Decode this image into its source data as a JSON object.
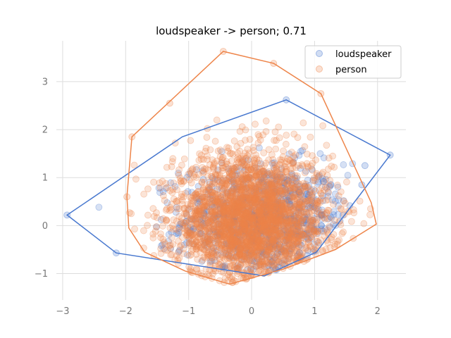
{
  "chart_data": {
    "type": "scatter",
    "title": "loudspeaker -> person; 0.71",
    "xlabel": "",
    "ylabel": "",
    "xlim": [
      -3.1,
      2.45
    ],
    "ylim": [
      -1.55,
      3.85
    ],
    "xticks": [
      -3,
      -2,
      -1,
      0,
      1,
      2
    ],
    "yticks": [
      -1,
      0,
      1,
      2,
      3
    ],
    "grid": true,
    "legend_position": "top-right",
    "series": [
      {
        "name": "loudspeaker",
        "color": "#4878cf",
        "point_count": 900,
        "center": [
          0.2,
          0.1
        ],
        "spread": [
          0.65,
          0.6
        ],
        "hull": [
          [
            -2.93,
            0.22
          ],
          [
            -1.1,
            1.85
          ],
          [
            0.55,
            2.62
          ],
          [
            2.2,
            1.47
          ],
          [
            1.03,
            -0.55
          ],
          [
            0.2,
            -1.05
          ],
          [
            -2.15,
            -0.57
          ]
        ],
        "outliers": [
          [
            -2.93,
            0.22
          ],
          [
            2.2,
            1.47
          ],
          [
            -2.15,
            -0.57
          ],
          [
            0.55,
            2.62
          ],
          [
            1.8,
            1.25
          ],
          [
            1.75,
            0.85
          ]
        ]
      },
      {
        "name": "person",
        "color": "#ee854a",
        "point_count": 2600,
        "center": [
          0.0,
          0.1
        ],
        "spread": [
          0.62,
          0.7
        ],
        "hull": [
          [
            -1.9,
            1.85
          ],
          [
            -0.45,
            3.63
          ],
          [
            0.35,
            3.38
          ],
          [
            1.1,
            2.75
          ],
          [
            1.9,
            0.48
          ],
          [
            1.98,
            0.03
          ],
          [
            1.33,
            -0.5
          ],
          [
            0.52,
            -0.9
          ],
          [
            -0.35,
            -1.22
          ],
          [
            -1.05,
            -0.95
          ],
          [
            -1.7,
            -0.55
          ],
          [
            -1.95,
            -0.05
          ],
          [
            -1.98,
            0.6
          ]
        ],
        "outliers": [
          [
            -0.45,
            3.63
          ],
          [
            0.35,
            3.38
          ],
          [
            -1.9,
            1.85
          ],
          [
            -1.3,
            2.55
          ],
          [
            1.1,
            2.75
          ],
          [
            -1.98,
            0.6
          ]
        ]
      }
    ]
  }
}
